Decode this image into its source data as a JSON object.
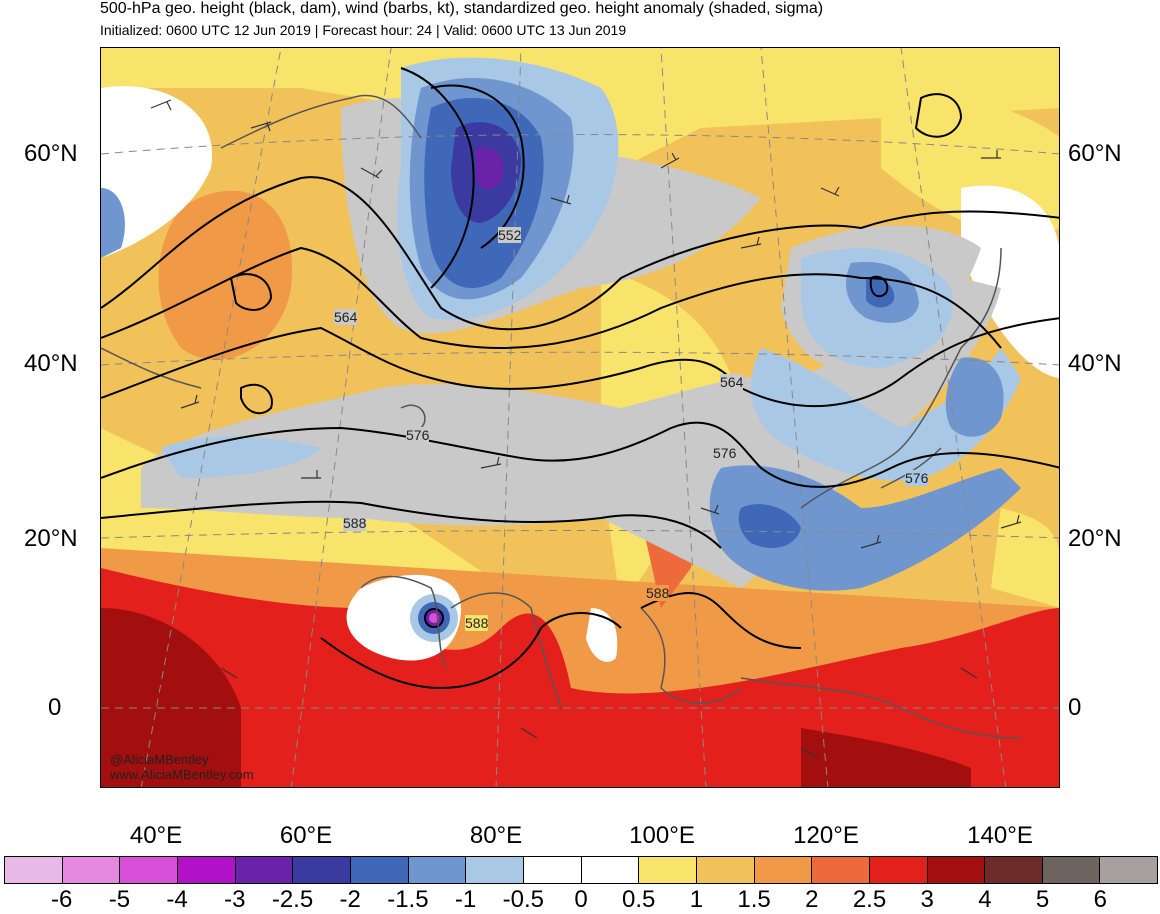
{
  "header": {
    "title": "500-hPa geo. height (black, dam), wind (barbs, kt), standardized geo. height anomaly (shaded, sigma)",
    "subtitle": "Initialized: 0600 UTC 12 Jun 2019 | Forecast hour: 24 | Valid: 0600 UTC 13 Jun 2019"
  },
  "axes": {
    "lat_left": [
      "60°N",
      "40°N",
      "20°N",
      "0"
    ],
    "lat_right": [
      "60°N",
      "40°N",
      "20°N",
      "0"
    ],
    "lon": [
      "40°E",
      "60°E",
      "80°E",
      "100°E",
      "120°E",
      "140°E"
    ]
  },
  "contour_labels": [
    "552",
    "564",
    "564",
    "576",
    "576",
    "576",
    "588",
    "588",
    "588"
  ],
  "credit": {
    "handle": "@AliciaMBentley",
    "url": "www.AliciaMBentley.com"
  },
  "colorbar": {
    "colors": [
      "#e8b9e6",
      "#e488e0",
      "#d84fd8",
      "#b112c8",
      "#6a22a8",
      "#3b3aa0",
      "#3f68b8",
      "#6f96cf",
      "#a9c8e6",
      "#ffffff",
      "#ffffff",
      "#f8e46a",
      "#f2c25a",
      "#f09a48",
      "#ee6a3a",
      "#e4201c",
      "#a30e0e",
      "#6f2a2a",
      "#6f6360",
      "#a8a0a0"
    ],
    "labels": [
      "-6",
      "-5",
      "-4",
      "-3",
      "-2.5",
      "-2",
      "-1.5",
      "-1",
      "-0.5",
      "0",
      "0.5",
      "1",
      "1.5",
      "2",
      "2.5",
      "3",
      "4",
      "5",
      "6"
    ]
  }
}
